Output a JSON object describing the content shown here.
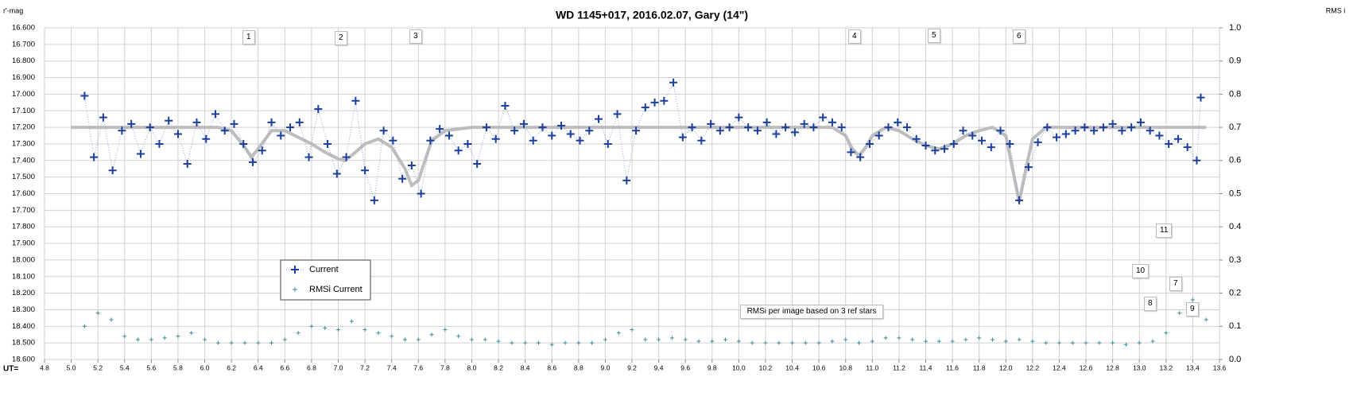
{
  "chart_data": {
    "type": "scatter",
    "title": "WD 1145+017, 2016.02.07,  Gary (14\")",
    "y_label": "r'-mag",
    "y2_label": "RMS i",
    "x_label": "UT=",
    "xlim": [
      4.8,
      13.6
    ],
    "ylim": [
      16.6,
      18.6
    ],
    "y_inverted": true,
    "y2lim": [
      0,
      1
    ],
    "grid": true,
    "xticks": [
      4.8,
      {
        "value": 5,
        "label": "5.0"
      },
      5.2,
      5.4,
      5.6,
      5.8,
      {
        "value": 6,
        "label": "6.0"
      },
      6.2,
      6.4,
      6.6,
      6.8,
      {
        "value": 7,
        "label": "7.0"
      },
      7.2,
      7.4,
      7.6,
      7.8,
      {
        "value": 8,
        "label": "8.0"
      },
      8.2,
      8.4,
      8.6,
      8.8,
      {
        "value": 9,
        "label": "9.0"
      },
      9.2,
      9.4,
      9.6,
      9.8,
      {
        "value": 10,
        "label": "10.0"
      },
      10.2,
      10.4,
      10.6,
      10.8,
      {
        "value": 11,
        "label": "11.0"
      },
      11.2,
      11.4,
      11.6,
      11.8,
      {
        "value": 12,
        "label": "12.0"
      },
      12.2,
      12.4,
      12.6,
      12.8,
      {
        "value": 13,
        "label": "13.0"
      },
      13.2,
      13.4,
      13.6
    ],
    "yticks": [
      {
        "value": 16.6,
        "label": "16.600"
      },
      {
        "value": 16.7,
        "label": "16.700"
      },
      {
        "value": 16.8,
        "label": "16.800"
      },
      {
        "value": 16.9,
        "label": "16.900"
      },
      {
        "value": 17.0,
        "label": "17.000"
      },
      {
        "value": 17.1,
        "label": "17.100"
      },
      {
        "value": 17.2,
        "label": "17.200"
      },
      {
        "value": 17.3,
        "label": "17.300"
      },
      {
        "value": 17.4,
        "label": "17.400"
      },
      {
        "value": 17.5,
        "label": "17.500"
      },
      {
        "value": 17.6,
        "label": "17.600"
      },
      {
        "value": 17.7,
        "label": "17.700"
      },
      {
        "value": 17.8,
        "label": "17.800"
      },
      {
        "value": 17.9,
        "label": "17.900"
      },
      {
        "value": 18.0,
        "label": "18.000"
      },
      {
        "value": 18.1,
        "label": "18.100"
      },
      {
        "value": 18.2,
        "label": "18.200"
      },
      {
        "value": 18.3,
        "label": "18.300"
      },
      {
        "value": 18.4,
        "label": "18.400"
      },
      {
        "value": 18.5,
        "label": "18.500"
      },
      {
        "value": 18.6,
        "label": "18.600"
      }
    ],
    "y2ticks": [
      {
        "value": 0,
        "label": "0.0"
      },
      0.1,
      0.2,
      0.3,
      0.4,
      0.5,
      0.6,
      0.7,
      0.8,
      0.9,
      {
        "value": 1,
        "label": "1.0"
      }
    ],
    "series": [
      {
        "name": "Current",
        "color": "#1c3f9e",
        "marker": "plus",
        "line": "dotted",
        "x": [
          5.1,
          5.17,
          5.24,
          5.31,
          5.38,
          5.45,
          5.52,
          5.59,
          5.66,
          5.73,
          5.8,
          5.87,
          5.94,
          6.01,
          6.08,
          6.15,
          6.22,
          6.29,
          6.36,
          6.43,
          6.5,
          6.57,
          6.64,
          6.71,
          6.78,
          6.85,
          6.92,
          6.99,
          7.06,
          7.13,
          7.2,
          7.27,
          7.34,
          7.41,
          7.48,
          7.55,
          7.62,
          7.69,
          7.76,
          7.83,
          7.9,
          7.97,
          8.04,
          8.11,
          8.18,
          8.25,
          8.32,
          8.39,
          8.46,
          8.53,
          8.6,
          8.67,
          8.74,
          8.81,
          8.88,
          8.95,
          9.02,
          9.09,
          9.16,
          9.23,
          9.3,
          9.37,
          9.44,
          9.51,
          9.58,
          9.65,
          9.72,
          9.79,
          9.86,
          9.93,
          10.0,
          10.07,
          10.14,
          10.21,
          10.28,
          10.35,
          10.42,
          10.49,
          10.56,
          10.63,
          10.7,
          10.77,
          10.84,
          10.91,
          10.98,
          11.05,
          11.12,
          11.19,
          11.26,
          11.33,
          11.4,
          11.47,
          11.54,
          11.61,
          11.68,
          11.75,
          11.82,
          11.89,
          11.96,
          12.03,
          12.1,
          12.17,
          12.24,
          12.31,
          12.38,
          12.45,
          12.52,
          12.59,
          12.66,
          12.73,
          12.8,
          12.87,
          12.94,
          13.01,
          13.08,
          13.15,
          13.22,
          13.29,
          13.36,
          13.43,
          13.46
        ],
        "values": [
          17.01,
          17.38,
          17.14,
          17.46,
          17.22,
          17.18,
          17.36,
          17.2,
          17.3,
          17.16,
          17.24,
          17.42,
          17.17,
          17.27,
          17.12,
          17.22,
          17.18,
          17.3,
          17.41,
          17.34,
          17.17,
          17.25,
          17.2,
          17.17,
          17.38,
          17.09,
          17.3,
          17.48,
          17.38,
          17.04,
          17.46,
          17.64,
          17.22,
          17.28,
          17.51,
          17.43,
          17.6,
          17.28,
          17.21,
          17.25,
          17.34,
          17.3,
          17.42,
          17.2,
          17.27,
          17.07,
          17.22,
          17.18,
          17.28,
          17.2,
          17.25,
          17.19,
          17.24,
          17.28,
          17.22,
          17.15,
          17.3,
          17.12,
          17.52,
          17.22,
          17.08,
          17.05,
          17.04,
          16.93,
          17.26,
          17.2,
          17.28,
          17.18,
          17.22,
          17.2,
          17.14,
          17.2,
          17.22,
          17.17,
          17.24,
          17.2,
          17.23,
          17.18,
          17.2,
          17.14,
          17.17,
          17.2,
          17.35,
          17.38,
          17.3,
          17.25,
          17.2,
          17.17,
          17.2,
          17.27,
          17.31,
          17.34,
          17.33,
          17.3,
          17.22,
          17.25,
          17.28,
          17.32,
          17.22,
          17.3,
          17.64,
          17.44,
          17.29,
          17.2,
          17.26,
          17.24,
          17.22,
          17.2,
          17.22,
          17.2,
          17.18,
          17.22,
          17.2,
          17.17,
          17.22,
          17.25,
          17.3,
          17.27,
          17.32,
          17.4,
          17.02
        ]
      },
      {
        "name": "RMSi Current",
        "color": "#3b8e9c",
        "marker": "plus",
        "axis": "y2",
        "x": [
          5.1,
          5.2,
          5.3,
          5.4,
          5.5,
          5.6,
          5.7,
          5.8,
          5.9,
          6.0,
          6.1,
          6.2,
          6.3,
          6.4,
          6.5,
          6.6,
          6.7,
          6.8,
          6.9,
          7.0,
          7.1,
          7.2,
          7.3,
          7.4,
          7.5,
          7.6,
          7.7,
          7.8,
          7.9,
          8.0,
          8.1,
          8.2,
          8.3,
          8.4,
          8.5,
          8.6,
          8.7,
          8.8,
          8.9,
          9.0,
          9.1,
          9.2,
          9.3,
          9.4,
          9.5,
          9.6,
          9.7,
          9.8,
          9.9,
          10.0,
          10.1,
          10.2,
          10.3,
          10.4,
          10.5,
          10.6,
          10.7,
          10.8,
          10.9,
          11.0,
          11.1,
          11.2,
          11.3,
          11.4,
          11.5,
          11.6,
          11.7,
          11.8,
          11.9,
          12.0,
          12.1,
          12.2,
          12.3,
          12.4,
          12.5,
          12.6,
          12.7,
          12.8,
          12.9,
          13.0,
          13.1,
          13.2,
          13.3,
          13.4,
          13.5
        ],
        "values": [
          0.1,
          0.14,
          0.12,
          0.07,
          0.06,
          0.06,
          0.065,
          0.07,
          0.08,
          0.06,
          0.05,
          0.05,
          0.05,
          0.05,
          0.05,
          0.06,
          0.08,
          0.1,
          0.095,
          0.09,
          0.115,
          0.09,
          0.08,
          0.07,
          0.06,
          0.06,
          0.075,
          0.09,
          0.07,
          0.06,
          0.06,
          0.055,
          0.05,
          0.05,
          0.05,
          0.045,
          0.05,
          0.05,
          0.05,
          0.06,
          0.08,
          0.09,
          0.06,
          0.06,
          0.065,
          0.06,
          0.055,
          0.055,
          0.06,
          0.055,
          0.05,
          0.05,
          0.05,
          0.05,
          0.05,
          0.05,
          0.055,
          0.06,
          0.05,
          0.055,
          0.065,
          0.065,
          0.06,
          0.055,
          0.055,
          0.055,
          0.06,
          0.065,
          0.06,
          0.055,
          0.06,
          0.055,
          0.05,
          0.05,
          0.05,
          0.05,
          0.05,
          0.05,
          0.045,
          0.05,
          0.055,
          0.08,
          0.14,
          0.18,
          0.12
        ]
      },
      {
        "color": "#bdbdbd",
        "marker": "none",
        "line": "solid",
        "x": [
          5.0,
          6.1,
          6.2,
          6.3,
          6.35,
          6.4,
          6.5,
          6.6,
          6.7,
          6.8,
          6.9,
          7.0,
          7.05,
          7.1,
          7.2,
          7.3,
          7.4,
          7.5,
          7.55,
          7.6,
          7.65,
          7.7,
          7.8,
          8.0,
          10.7,
          10.8,
          10.85,
          10.9,
          10.95,
          11.0,
          11.1,
          11.2,
          11.3,
          11.4,
          11.5,
          11.6,
          11.7,
          11.8,
          11.9,
          12.0,
          12.05,
          12.1,
          12.15,
          12.2,
          12.3,
          13.5
        ],
        "values": [
          17.2,
          17.2,
          17.22,
          17.32,
          17.38,
          17.33,
          17.22,
          17.22,
          17.26,
          17.3,
          17.35,
          17.39,
          17.4,
          17.37,
          17.3,
          17.27,
          17.32,
          17.45,
          17.55,
          17.52,
          17.4,
          17.28,
          17.22,
          17.2,
          17.2,
          17.25,
          17.33,
          17.37,
          17.32,
          17.25,
          17.2,
          17.22,
          17.27,
          17.31,
          17.33,
          17.3,
          17.25,
          17.22,
          17.2,
          17.25,
          17.45,
          17.65,
          17.45,
          17.27,
          17.2,
          17.2
        ]
      }
    ],
    "annotations": [
      "1",
      "2",
      "3",
      "4",
      "5",
      "6",
      "7",
      "8",
      "9",
      "10",
      "11",
      "RMSi per image based on 3 ref stars"
    ]
  }
}
